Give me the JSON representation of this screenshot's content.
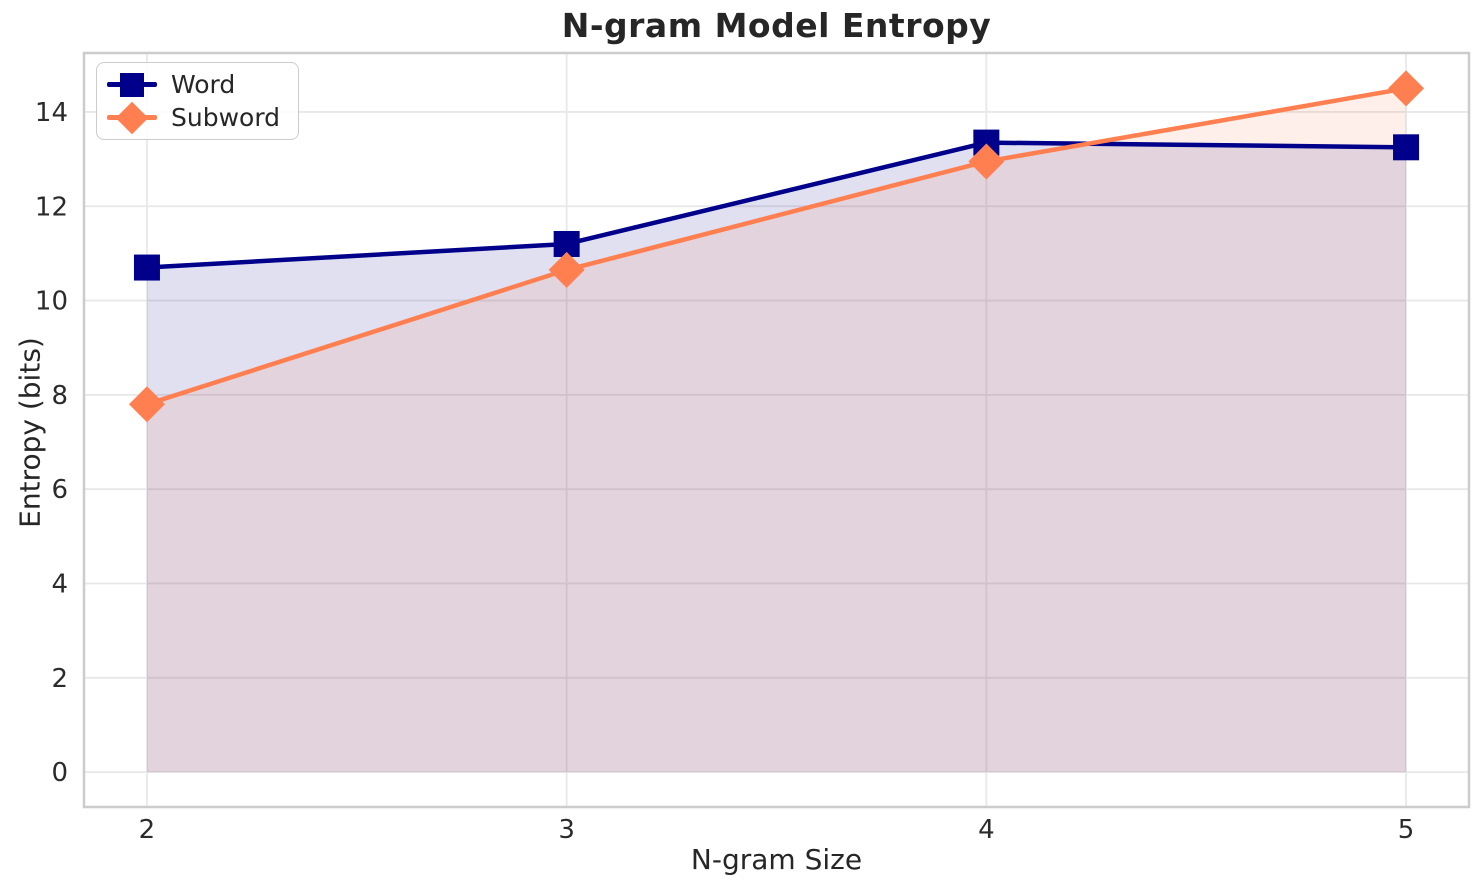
{
  "chart_data": {
    "type": "line",
    "title": "N-gram Model Entropy",
    "xlabel": "N-gram Size",
    "ylabel": "Entropy (bits)",
    "x": [
      2,
      3,
      4,
      5
    ],
    "xtick_labels": [
      "2",
      "3",
      "4",
      "5"
    ],
    "yticks": [
      0,
      2,
      4,
      6,
      8,
      10,
      12,
      14
    ],
    "xlim": [
      1.85,
      5.15
    ],
    "ylim": [
      -0.74,
      15.25
    ],
    "grid": true,
    "legend_position": "upper left",
    "fill_to_baseline": 0,
    "fill_alpha": 0.12,
    "series": [
      {
        "name": "Word",
        "marker": "square",
        "color": "#00008B",
        "values": [
          10.7,
          11.2,
          13.35,
          13.25
        ]
      },
      {
        "name": "Subword",
        "marker": "diamond",
        "color": "#FF7F50",
        "values": [
          7.8,
          10.65,
          12.95,
          14.5
        ]
      }
    ]
  },
  "style_colors": {
    "grid": "#e8e8e8",
    "spine": "#cccccc",
    "tick_text": "#2b2b2b",
    "text": "#262626",
    "background": "#ffffff"
  }
}
